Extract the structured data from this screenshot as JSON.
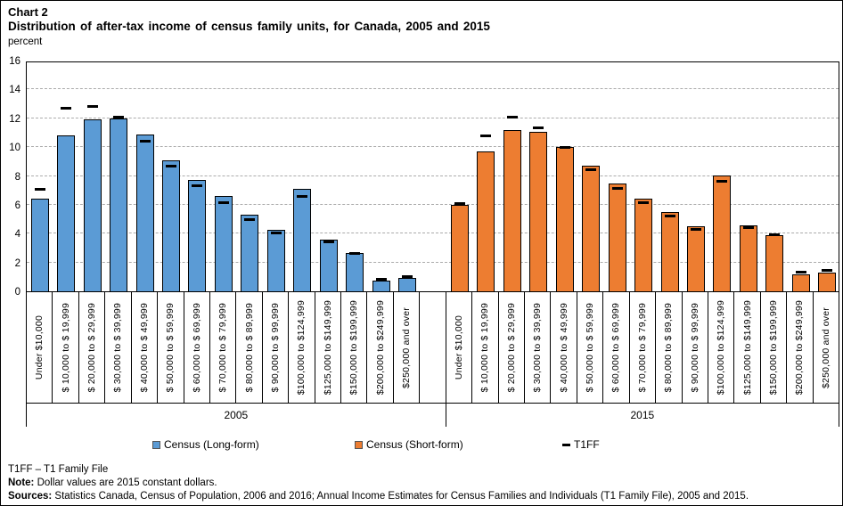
{
  "header": {
    "chart_label": "Chart 2",
    "title": "Distribution of after-tax income of census family units, for Canada, 2005 and 2015",
    "unit": "percent"
  },
  "chart_data": {
    "type": "bar",
    "title": "Distribution of after-tax income of census family units, for Canada, 2005 and 2015",
    "ylabel": "percent",
    "ylim": [
      0,
      16
    ],
    "yticks": [
      0,
      2,
      4,
      6,
      8,
      10,
      12,
      14,
      16
    ],
    "grid": "horizontal-dashed",
    "legend_position": "bottom",
    "categories": [
      "Under $10,000",
      "$ 10,000 to $ 19,999",
      "$ 20,000 to $ 29,999",
      "$ 30,000 to $ 39,999",
      "$ 40,000 to $ 49,999",
      "$ 50,000 to $ 59,999",
      "$ 60,000 to $ 69,999",
      "$ 70,000 to $ 79,999",
      "$ 80,000 to $ 89,999",
      "$ 90,000 to $ 99,999",
      "$100,000 to $124,999",
      "$125,000 to $149,999",
      "$150,000 to $199,999",
      "$200,000 to $249,999",
      "$250,000 and over"
    ],
    "groups": [
      {
        "label": "2005",
        "series_name": "Census (Long-form)",
        "color": "#5B9BD5",
        "values": [
          6.4,
          10.8,
          11.9,
          12.0,
          10.9,
          9.1,
          7.75,
          6.6,
          5.3,
          4.25,
          7.1,
          3.6,
          2.65,
          0.75,
          0.95
        ],
        "t1ff_values": [
          7.05,
          12.7,
          12.8,
          12.1,
          10.4,
          8.65,
          7.3,
          6.15,
          5.0,
          4.05,
          6.55,
          3.4,
          2.6,
          0.85,
          1.0
        ]
      },
      {
        "label": "2015",
        "series_name": "Census (Short-form)",
        "color": "#ED7D31",
        "values": [
          6.0,
          9.7,
          11.2,
          11.05,
          10.0,
          8.7,
          7.5,
          6.45,
          5.5,
          4.5,
          8.05,
          4.6,
          3.9,
          1.2,
          1.3
        ],
        "t1ff_values": [
          6.1,
          10.75,
          12.1,
          11.35,
          10.0,
          8.45,
          7.15,
          6.15,
          5.2,
          4.3,
          7.6,
          4.4,
          3.95,
          1.35,
          1.45
        ]
      }
    ],
    "marker_series": "T1FF",
    "marker_color": "#000000",
    "legend": [
      {
        "label": "Census (Long-form)",
        "type": "square",
        "color": "#5B9BD5"
      },
      {
        "label": "Census (Short-form)",
        "type": "square",
        "color": "#ED7D31"
      },
      {
        "label": "T1FF",
        "type": "dash",
        "color": "#000000"
      }
    ]
  },
  "footnotes": {
    "line1": "T1FF – T1 Family File",
    "note_label": "Note:",
    "note_text": " Dollar values are 2015 constant dollars.",
    "sources_label": "Sources:",
    "sources_text": " Statistics Canada, Census of Population, 2006 and 2016; Annual Income Estimates for Census Families and Individuals (T1 Family File), 2005 and 2015."
  }
}
